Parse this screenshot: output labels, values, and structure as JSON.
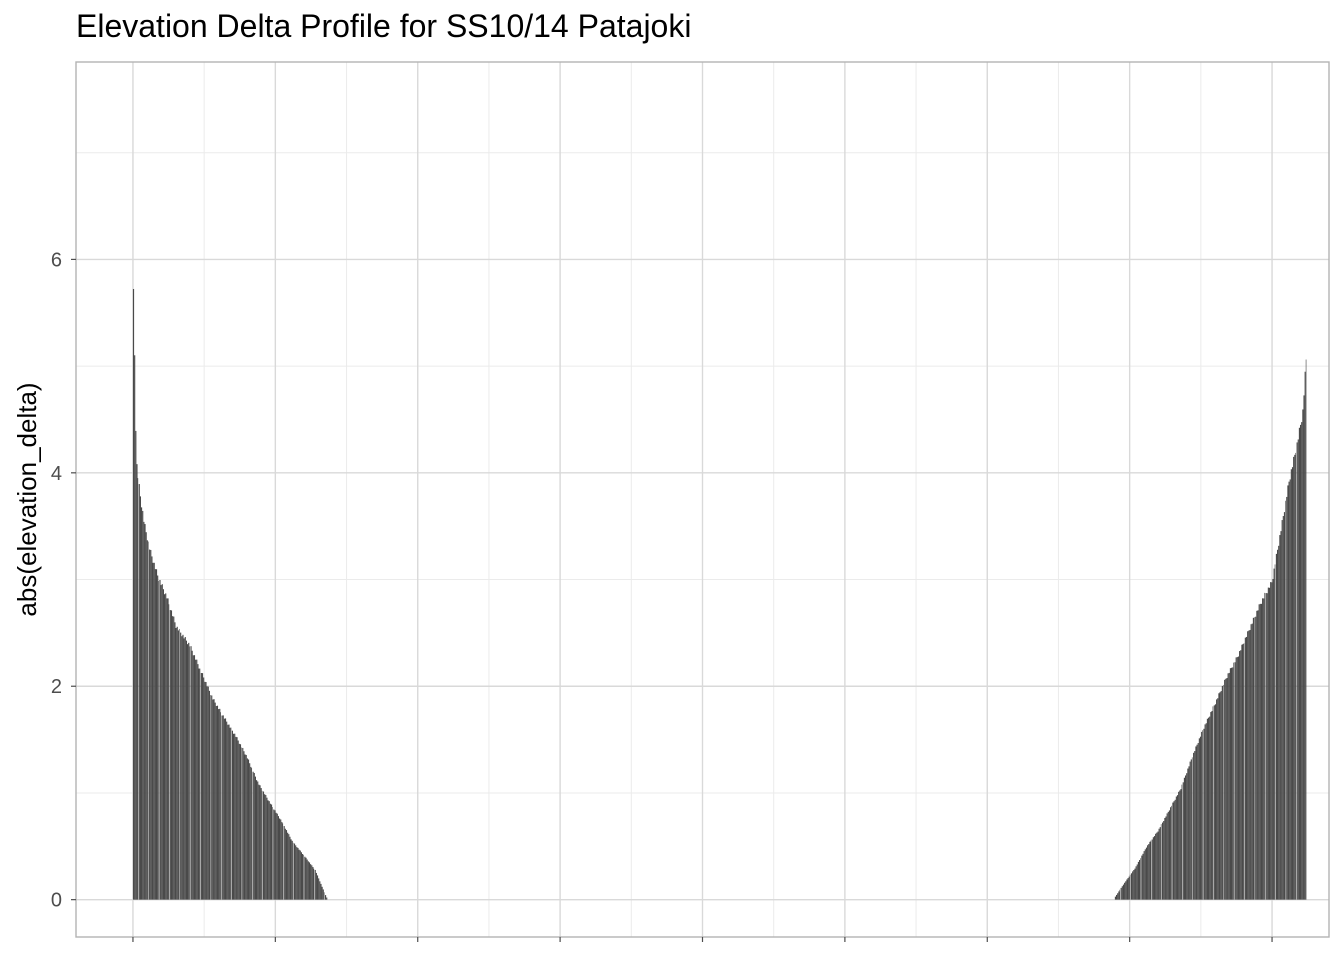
{
  "chart_data": {
    "type": "bar",
    "title": "Elevation Delta Profile for SS10/14 Patajoki",
    "xlabel": "",
    "ylabel": "abs(elevation_delta)",
    "ylim": [
      -0.35,
      7.85
    ],
    "yticks": [
      0,
      2,
      4,
      6
    ],
    "xlim": [
      -0.05,
      1.05
    ],
    "grid": true,
    "bar_color": "#4a4a4a",
    "segments": [
      {
        "name": "",
        "x_start": 0.0,
        "x_end": 0.17,
        "shape": "descending",
        "profile": [
          [
            0.0,
            5.95
          ],
          [
            0.001,
            5.5
          ],
          [
            0.002,
            4.8
          ],
          [
            0.003,
            4.15
          ],
          [
            0.006,
            3.85
          ],
          [
            0.01,
            3.55
          ],
          [
            0.015,
            3.3
          ],
          [
            0.022,
            3.05
          ],
          [
            0.03,
            2.85
          ],
          [
            0.038,
            2.58
          ],
          [
            0.05,
            2.4
          ],
          [
            0.06,
            2.15
          ],
          [
            0.07,
            1.9
          ],
          [
            0.08,
            1.72
          ],
          [
            0.09,
            1.55
          ],
          [
            0.1,
            1.35
          ],
          [
            0.11,
            1.1
          ],
          [
            0.12,
            0.92
          ],
          [
            0.13,
            0.75
          ],
          [
            0.14,
            0.55
          ],
          [
            0.15,
            0.42
          ],
          [
            0.16,
            0.28
          ],
          [
            0.165,
            0.15
          ],
          [
            0.17,
            0.02
          ]
        ]
      },
      {
        "name": "",
        "x_start": 0.862,
        "x_end": 1.03,
        "shape": "ascending",
        "profile": [
          [
            0.862,
            0.02
          ],
          [
            0.87,
            0.15
          ],
          [
            0.88,
            0.3
          ],
          [
            0.89,
            0.5
          ],
          [
            0.9,
            0.65
          ],
          [
            0.91,
            0.85
          ],
          [
            0.92,
            1.05
          ],
          [
            0.93,
            1.35
          ],
          [
            0.94,
            1.62
          ],
          [
            0.95,
            1.85
          ],
          [
            0.96,
            2.1
          ],
          [
            0.97,
            2.3
          ],
          [
            0.98,
            2.55
          ],
          [
            0.99,
            2.8
          ],
          [
            1.0,
            3.0
          ],
          [
            1.008,
            3.5
          ],
          [
            1.015,
            3.95
          ],
          [
            1.022,
            4.3
          ],
          [
            1.027,
            4.6
          ],
          [
            1.03,
            5.1
          ]
        ]
      }
    ]
  }
}
